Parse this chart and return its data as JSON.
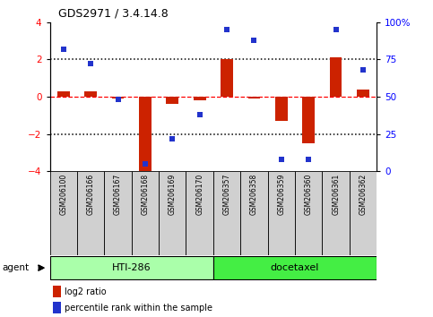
{
  "title": "GDS2971 / 3.4.14.8",
  "samples": [
    "GSM206100",
    "GSM206166",
    "GSM206167",
    "GSM206168",
    "GSM206169",
    "GSM206170",
    "GSM206357",
    "GSM206358",
    "GSM206359",
    "GSM206360",
    "GSM206361",
    "GSM206362"
  ],
  "log2_ratio": [
    0.3,
    0.3,
    -0.1,
    -4.1,
    -0.4,
    -0.2,
    2.0,
    -0.1,
    -1.3,
    -2.5,
    2.1,
    0.4
  ],
  "pct_rank": [
    82,
    72,
    48,
    5,
    22,
    38,
    95,
    88,
    8,
    8,
    95,
    68
  ],
  "groups": [
    {
      "label": "HTI-286",
      "start": 0,
      "end": 5,
      "color": "#aaffaa"
    },
    {
      "label": "docetaxel",
      "start": 6,
      "end": 11,
      "color": "#44ee44"
    }
  ],
  "ylim_left": [
    -4,
    4
  ],
  "ylim_right": [
    0,
    100
  ],
  "yticks_left": [
    -4,
    -2,
    0,
    2,
    4
  ],
  "yticks_right": [
    0,
    25,
    50,
    75,
    100
  ],
  "yticklabels_right": [
    "0",
    "25",
    "50",
    "75",
    "100%"
  ],
  "bar_color": "#cc2200",
  "dot_color": "#2233cc",
  "agent_label": "agent",
  "legend_items": [
    {
      "label": "log2 ratio",
      "color": "#cc2200"
    },
    {
      "label": "percentile rank within the sample",
      "color": "#2233cc"
    }
  ]
}
